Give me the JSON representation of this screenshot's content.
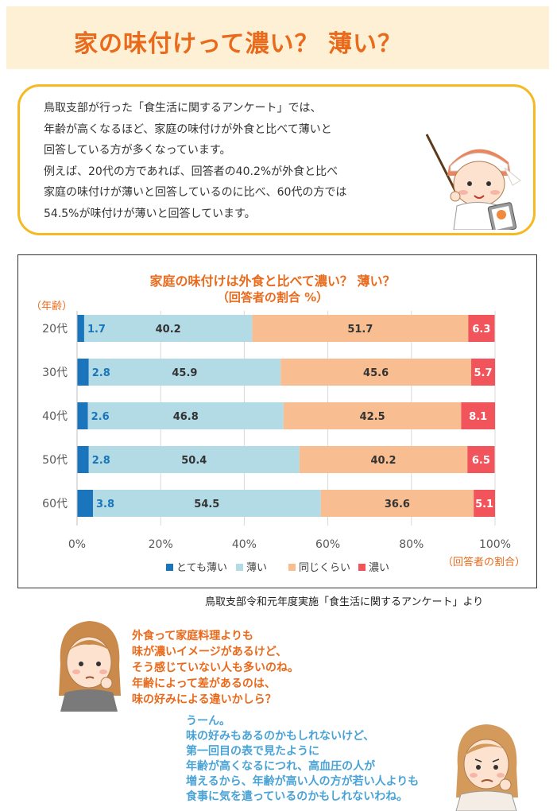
{
  "header": {
    "title": "家の味付けって濃い？ 薄い？"
  },
  "intro": {
    "lines": [
      "鳥取支部が行った「食生活に関するアンケート」では、",
      "年齢が高くなるほど、家庭の味付けが外食と比べて薄いと",
      "回答している方が多くなっています。",
      "例えば、20代の方であれば、回答者の40.2%が外食と比べ",
      "家庭の味付けが薄いと回答しているのに比べ、60代の方では",
      "54.5%が味付けが薄いと回答しています。"
    ]
  },
  "chart_data": {
    "type": "bar",
    "orientation": "horizontal",
    "stacked": true,
    "title": "家庭の味付けは外食と比べて濃い？ 薄い？",
    "subtitle": "（回答者の割合 %）",
    "ylabel": "（年齢）",
    "xlabel": "（回答者の割合）",
    "categories": [
      "20代",
      "30代",
      "40代",
      "50代",
      "60代"
    ],
    "xlim": [
      0,
      100
    ],
    "xticks": [
      "0%",
      "20%",
      "40%",
      "60%",
      "80%",
      "100%"
    ],
    "grid": true,
    "legend_position": "bottom",
    "series": [
      {
        "name": "とても薄い",
        "color": "#1a75bc",
        "label_color": "#1a75bc",
        "values": [
          1.7,
          2.8,
          2.6,
          2.8,
          3.8
        ]
      },
      {
        "name": "薄い",
        "color": "#b3dbe6",
        "label_color": "#333333",
        "values": [
          40.2,
          45.9,
          46.8,
          50.4,
          54.5
        ]
      },
      {
        "name": "同じくらい",
        "color": "#f8be91",
        "label_color": "#333333",
        "values": [
          51.7,
          45.6,
          42.5,
          40.2,
          36.6
        ]
      },
      {
        "name": "濃い",
        "color": "#f2545b",
        "label_color": "#ffffff",
        "values": [
          6.3,
          5.7,
          8.1,
          6.5,
          5.1
        ]
      }
    ]
  },
  "source": "鳥取支部令和元年度実施「食生活に関するアンケート」より",
  "speech1": {
    "lines": [
      "外食って家庭料理よりも",
      "味が濃いイメージがあるけど、",
      "そう感じていない人も多いのね。",
      "年齢によって差があるのは、",
      "味の好みによる違いかしら？"
    ]
  },
  "speech2": {
    "lines": [
      "うーん。",
      "味の好みもあるのかもしれないけど、",
      "第一回目の表で見たように",
      "年齢が高くなるにつれ、高血圧の人が",
      "増えるから、年齢が高い人の方が若い人よりも",
      "食事に気を遣っているのかもしれないわね。"
    ]
  }
}
